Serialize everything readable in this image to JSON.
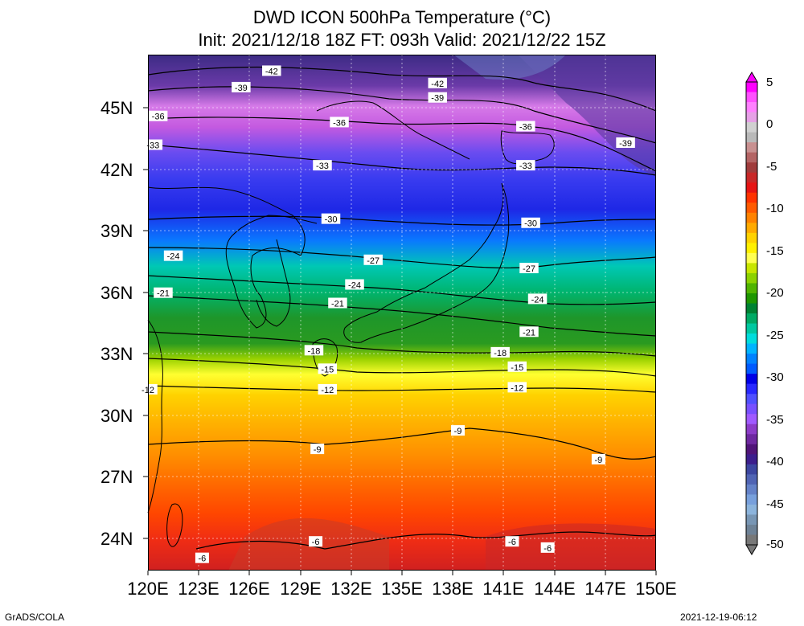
{
  "title_line1": "DWD ICON 500hPa Temperature (°C)",
  "title_line2": "Init: 2021/12/18 18Z  FT: 093h  Valid: 2021/12/22 15Z",
  "lat_labels": [
    "45N",
    "42N",
    "39N",
    "36N",
    "33N",
    "30N",
    "27N",
    "24N"
  ],
  "lon_labels": [
    "120E",
    "123E",
    "126E",
    "129E",
    "132E",
    "135E",
    "138E",
    "141E",
    "144E",
    "147E",
    "150E"
  ],
  "colorbar": {
    "labels": [
      "5",
      "0",
      "-5",
      "-10",
      "-15",
      "-20",
      "-25",
      "-30",
      "-35",
      "-40",
      "-45",
      "-50"
    ],
    "colors": [
      "#ff00ff",
      "#ff50ff",
      "#ff80ff",
      "#e6a0e6",
      "#d0d0d0",
      "#b9b9b9",
      "#c89090",
      "#b46464",
      "#a03c3c",
      "#c82828",
      "#e61414",
      "#ff3200",
      "#ff5a00",
      "#ff8200",
      "#ffaa00",
      "#ffd200",
      "#fff000",
      "#ffff50",
      "#c8e600",
      "#8cd200",
      "#50b400",
      "#1e9600",
      "#008232",
      "#00aa64",
      "#00c8a0",
      "#00dcdc",
      "#00b4ff",
      "#0082ff",
      "#005aff",
      "#0000e6",
      "#2828ff",
      "#5050ff",
      "#7850ff",
      "#a05aff",
      "#8c3cc8",
      "#6e28a0",
      "#501478",
      "#3c1e8c",
      "#3c46a0",
      "#5064b4",
      "#6482c8",
      "#78a0dc",
      "#8cb4dc",
      "#7896b4",
      "#6e8296",
      "#787878"
    ]
  },
  "contour_labels": [
    {
      "lat": 46.8,
      "lon": 127.3,
      "text": "-42"
    },
    {
      "lat": 46.2,
      "lon": 137.1,
      "text": "-42"
    },
    {
      "lat": 46.0,
      "lon": 125.5,
      "text": "-39"
    },
    {
      "lat": 45.5,
      "lon": 137.1,
      "text": "-39"
    },
    {
      "lat": 43.3,
      "lon": 148.2,
      "text": "-39"
    },
    {
      "lat": 44.6,
      "lon": 120.6,
      "text": "-36"
    },
    {
      "lat": 44.3,
      "lon": 131.3,
      "text": "-36"
    },
    {
      "lat": 44.1,
      "lon": 142.3,
      "text": "-36"
    },
    {
      "lat": 43.2,
      "lon": 120.3,
      "text": "-33"
    },
    {
      "lat": 42.2,
      "lon": 130.3,
      "text": "-33"
    },
    {
      "lat": 42.2,
      "lon": 142.3,
      "text": "-33"
    },
    {
      "lat": 39.6,
      "lon": 130.8,
      "text": "-30"
    },
    {
      "lat": 39.4,
      "lon": 142.6,
      "text": "-30"
    },
    {
      "lat": 37.8,
      "lon": 121.5,
      "text": "-24"
    },
    {
      "lat": 37.6,
      "lon": 133.3,
      "text": "-27"
    },
    {
      "lat": 37.2,
      "lon": 142.5,
      "text": "-27"
    },
    {
      "lat": 36.4,
      "lon": 132.2,
      "text": "-24"
    },
    {
      "lat": 35.7,
      "lon": 143.0,
      "text": "-24"
    },
    {
      "lat": 36.0,
      "lon": 120.9,
      "text": "-21"
    },
    {
      "lat": 35.5,
      "lon": 131.2,
      "text": "-21"
    },
    {
      "lat": 34.1,
      "lon": 142.5,
      "text": "-21"
    },
    {
      "lat": 33.2,
      "lon": 129.8,
      "text": "-18"
    },
    {
      "lat": 33.1,
      "lon": 140.8,
      "text": "-18"
    },
    {
      "lat": 32.3,
      "lon": 130.6,
      "text": "-15"
    },
    {
      "lat": 32.4,
      "lon": 141.8,
      "text": "-15"
    },
    {
      "lat": 31.3,
      "lon": 130.6,
      "text": "-12"
    },
    {
      "lat": 31.4,
      "lon": 141.8,
      "text": "-12"
    },
    {
      "lat": 31.3,
      "lon": 120.0,
      "text": "-12"
    },
    {
      "lat": 29.3,
      "lon": 138.3,
      "text": "-9"
    },
    {
      "lat": 28.4,
      "lon": 130.0,
      "text": "-9"
    },
    {
      "lat": 27.9,
      "lon": 146.6,
      "text": "-9"
    },
    {
      "lat": 23.9,
      "lon": 129.9,
      "text": "-6"
    },
    {
      "lat": 23.9,
      "lon": 141.5,
      "text": "-6"
    },
    {
      "lat": 23.6,
      "lon": 143.6,
      "text": "-6"
    },
    {
      "lat": 23.1,
      "lon": 123.2,
      "text": "-6"
    }
  ],
  "footer_left": "GrADS/COLA",
  "footer_right": "2021-12-19-06:12"
}
